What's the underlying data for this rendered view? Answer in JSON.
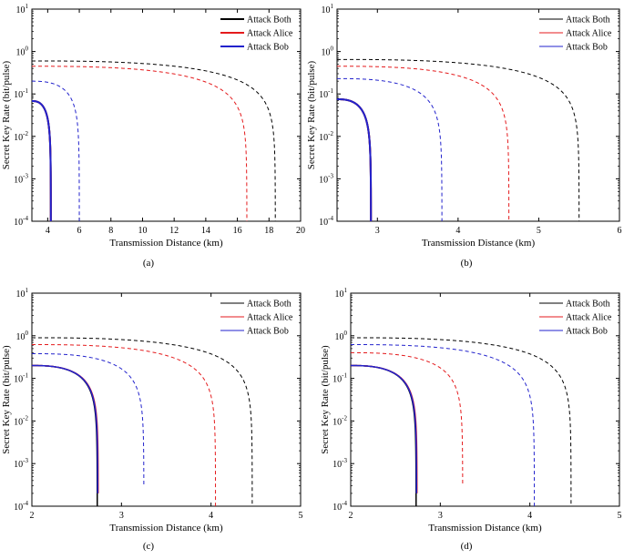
{
  "chart_data": [
    {
      "type": "line",
      "panel_label": "(a)",
      "xlabel": "Transmission Distance (km)",
      "ylabel": "Secret Key Rate (bit/pulse)",
      "xlim": [
        3,
        20
      ],
      "ylim": [
        0.0001,
        10
      ],
      "yscale": "log",
      "xticks": [
        4,
        6,
        8,
        10,
        12,
        14,
        16,
        18,
        20
      ],
      "xtick_labels": [
        "4",
        "6",
        "8",
        "10",
        "12",
        "14",
        "16",
        "18",
        "20"
      ],
      "legend": [
        "Attack Both",
        "Attack Alice",
        "Attack Bob"
      ],
      "legend_position": "top-right",
      "legend_thick": true,
      "series": [
        {
          "name": "Attack Both (solid)",
          "color": "#000000",
          "dash": false,
          "width": 2,
          "y0": 0.068,
          "x0": 3,
          "xend": 4.2
        },
        {
          "name": "Attack Alice (solid)",
          "color": "#e41a1c",
          "dash": false,
          "width": 2,
          "y0": 0.068,
          "x0": 3,
          "xend": 4.2
        },
        {
          "name": "Attack Bob (solid)",
          "color": "#2222cc",
          "dash": false,
          "width": 2,
          "y0": 0.068,
          "x0": 3,
          "xend": 4.2
        },
        {
          "name": "Attack Both (dashed)",
          "color": "#000000",
          "dash": true,
          "width": 1,
          "y0": 0.6,
          "x0": 3,
          "xend": 18.4
        },
        {
          "name": "Attack Alice (dashed)",
          "color": "#e41a1c",
          "dash": true,
          "width": 1,
          "y0": 0.45,
          "x0": 3,
          "xend": 16.6
        },
        {
          "name": "Attack Bob (dashed)",
          "color": "#2222cc",
          "dash": true,
          "width": 1,
          "y0": 0.2,
          "x0": 3,
          "xend": 6.0
        }
      ]
    },
    {
      "type": "line",
      "panel_label": "(b)",
      "xlabel": "Transmission Distance (km)",
      "ylabel": "Secret Key Rate (bit/pulse)",
      "xlim": [
        2.5,
        6
      ],
      "ylim": [
        0.0001,
        10
      ],
      "yscale": "log",
      "xticks": [
        3,
        4,
        5,
        6
      ],
      "xtick_labels": [
        "3",
        "4",
        "5",
        "6"
      ],
      "legend": [
        "Attack Both",
        "Attack Alice",
        "Attack Bob"
      ],
      "legend_position": "top-right",
      "legend_thick": false,
      "series": [
        {
          "name": "Attack Both (solid)",
          "color": "#000000",
          "dash": false,
          "width": 2,
          "y0": 0.075,
          "x0": 2.5,
          "xend": 2.92
        },
        {
          "name": "Attack Alice (solid)",
          "color": "#e41a1c",
          "dash": false,
          "width": 2,
          "y0": 0.075,
          "x0": 2.5,
          "xend": 2.92
        },
        {
          "name": "Attack Bob (solid)",
          "color": "#2222cc",
          "dash": false,
          "width": 2,
          "y0": 0.075,
          "x0": 2.5,
          "xend": 2.92
        },
        {
          "name": "Attack Both (dashed)",
          "color": "#000000",
          "dash": true,
          "width": 1,
          "y0": 0.65,
          "x0": 2.5,
          "xend": 5.5
        },
        {
          "name": "Attack Alice (dashed)",
          "color": "#e41a1c",
          "dash": true,
          "width": 1,
          "y0": 0.45,
          "x0": 2.5,
          "xend": 4.63
        },
        {
          "name": "Attack Bob (dashed)",
          "color": "#2222cc",
          "dash": true,
          "width": 1,
          "y0": 0.23,
          "x0": 2.5,
          "xend": 3.8
        }
      ]
    },
    {
      "type": "line",
      "panel_label": "(c)",
      "xlabel": "Transmission Distance (km)",
      "ylabel": "Secret Key Rate (bit/pulse)",
      "xlim": [
        2,
        5
      ],
      "ylim": [
        0.0001,
        10
      ],
      "yscale": "log",
      "xticks": [
        2,
        3,
        4,
        5
      ],
      "xtick_labels": [
        "2",
        "3",
        "4",
        "5"
      ],
      "legend": [
        "Attack Both",
        "Attack Alice",
        "Attack Bob"
      ],
      "legend_position": "top-right",
      "legend_thick": false,
      "series": [
        {
          "name": "Attack Both (solid)",
          "color": "#000000",
          "dash": false,
          "width": 1.5,
          "y0": 0.2,
          "x0": 2,
          "xend": 2.73
        },
        {
          "name": "Attack Alice (solid)",
          "color": "#e41a1c",
          "dash": false,
          "width": 1.5,
          "y0": 0.2,
          "x0": 2,
          "xend": 2.74,
          "ymin": 0.0002
        },
        {
          "name": "Attack Bob (solid)",
          "color": "#2222cc",
          "dash": false,
          "width": 1.5,
          "y0": 0.2,
          "x0": 2,
          "xend": 2.735,
          "ymin": 0.0002
        },
        {
          "name": "Attack Both (dashed)",
          "color": "#000000",
          "dash": true,
          "width": 1,
          "y0": 0.9,
          "x0": 2,
          "xend": 4.46
        },
        {
          "name": "Attack Alice (dashed)",
          "color": "#e41a1c",
          "dash": true,
          "width": 1,
          "y0": 0.62,
          "x0": 2,
          "xend": 4.05
        },
        {
          "name": "Attack Bob (dashed)",
          "color": "#2222cc",
          "dash": true,
          "width": 1,
          "y0": 0.38,
          "x0": 2,
          "xend": 3.25,
          "ymin": 0.0003
        }
      ]
    },
    {
      "type": "line",
      "panel_label": "(d)",
      "xlabel": "Transmission Distance (km)",
      "ylabel": "Secret Key Rate (bit/pulse)",
      "xlim": [
        2,
        5
      ],
      "ylim": [
        0.0001,
        10
      ],
      "yscale": "log",
      "xticks": [
        2,
        3,
        4,
        5
      ],
      "xtick_labels": [
        "2",
        "3",
        "4",
        "5"
      ],
      "legend": [
        "Attack Both",
        "Attack Alice",
        "Attack Bob"
      ],
      "legend_position": "top-right",
      "legend_thick": false,
      "series": [
        {
          "name": "Attack Both (solid)",
          "color": "#000000",
          "dash": false,
          "width": 1.5,
          "y0": 0.2,
          "x0": 2,
          "xend": 2.73
        },
        {
          "name": "Attack Alice (solid)",
          "color": "#e41a1c",
          "dash": false,
          "width": 1.5,
          "y0": 0.2,
          "x0": 2,
          "xend": 2.74,
          "ymin": 0.0002
        },
        {
          "name": "Attack Bob (solid)",
          "color": "#2222cc",
          "dash": false,
          "width": 1.5,
          "y0": 0.2,
          "x0": 2,
          "xend": 2.735,
          "ymin": 0.0002
        },
        {
          "name": "Attack Both (dashed)",
          "color": "#000000",
          "dash": true,
          "width": 1,
          "y0": 0.9,
          "x0": 2,
          "xend": 4.46
        },
        {
          "name": "Attack Alice (dashed)",
          "color": "#e41a1c",
          "dash": true,
          "width": 1,
          "y0": 0.4,
          "x0": 2,
          "xend": 3.25,
          "ymin": 0.0003
        },
        {
          "name": "Attack Bob (dashed)",
          "color": "#2222cc",
          "dash": true,
          "width": 1,
          "y0": 0.62,
          "x0": 2,
          "xend": 4.05
        }
      ]
    }
  ],
  "ytick_labels": [
    "10",
    "10",
    "10",
    "10",
    "10",
    "10"
  ],
  "ytick_exponents": [
    "-4",
    "-3",
    "-2",
    "-1",
    "0",
    "1"
  ],
  "colors": {
    "both": "#000000",
    "alice": "#e41a1c",
    "bob": "#2222cc"
  }
}
